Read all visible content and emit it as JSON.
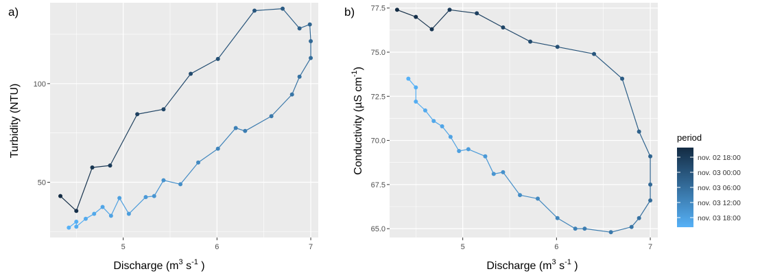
{
  "chart_data": [
    {
      "panel_label": "a)",
      "type": "line",
      "xlabel": "Discharge (m",
      "xlabel_sup": "3",
      "xlabel_mid": " s",
      "xlabel_sup2": "-1",
      "xlabel_end": " )",
      "ylabel": "Turbidity (NTU)",
      "xlim": [
        4.22,
        7.08
      ],
      "ylim": [
        22,
        141
      ],
      "xticks": [
        5,
        6,
        7
      ],
      "yticks": [
        50,
        100
      ],
      "grid": true,
      "points": [
        {
          "x": 4.33,
          "y": 43,
          "t": 0.0
        },
        {
          "x": 4.5,
          "y": 35.5,
          "t": 0.04
        },
        {
          "x": 4.67,
          "y": 57.5,
          "t": 0.08
        },
        {
          "x": 4.86,
          "y": 58.5,
          "t": 0.12
        },
        {
          "x": 5.15,
          "y": 84.5,
          "t": 0.16
        },
        {
          "x": 5.43,
          "y": 87,
          "t": 0.2
        },
        {
          "x": 5.72,
          "y": 105,
          "t": 0.24
        },
        {
          "x": 6.01,
          "y": 112.5,
          "t": 0.28
        },
        {
          "x": 6.4,
          "y": 137,
          "t": 0.32
        },
        {
          "x": 6.7,
          "y": 138,
          "t": 0.36
        },
        {
          "x": 6.88,
          "y": 128,
          "t": 0.4
        },
        {
          "x": 6.99,
          "y": 130,
          "t": 0.43
        },
        {
          "x": 7.0,
          "y": 121.5,
          "t": 0.46
        },
        {
          "x": 7.0,
          "y": 113,
          "t": 0.49
        },
        {
          "x": 6.88,
          "y": 103.5,
          "t": 0.52
        },
        {
          "x": 6.8,
          "y": 94.5,
          "t": 0.55
        },
        {
          "x": 6.58,
          "y": 83.5,
          "t": 0.58
        },
        {
          "x": 6.3,
          "y": 76,
          "t": 0.61
        },
        {
          "x": 6.2,
          "y": 77.5,
          "t": 0.64
        },
        {
          "x": 6.01,
          "y": 67,
          "t": 0.67
        },
        {
          "x": 5.8,
          "y": 60,
          "t": 0.7
        },
        {
          "x": 5.61,
          "y": 49,
          "t": 0.73
        },
        {
          "x": 5.43,
          "y": 51,
          "t": 0.76
        },
        {
          "x": 5.33,
          "y": 43,
          "t": 0.79
        },
        {
          "x": 5.24,
          "y": 42.5,
          "t": 0.82
        },
        {
          "x": 5.06,
          "y": 34,
          "t": 0.85
        },
        {
          "x": 4.96,
          "y": 42,
          "t": 0.87
        },
        {
          "x": 4.87,
          "y": 33,
          "t": 0.89
        },
        {
          "x": 4.78,
          "y": 37.5,
          "t": 0.91
        },
        {
          "x": 4.69,
          "y": 34,
          "t": 0.93
        },
        {
          "x": 4.6,
          "y": 31.5,
          "t": 0.95
        },
        {
          "x": 4.5,
          "y": 27.5,
          "t": 0.97
        },
        {
          "x": 4.5,
          "y": 30,
          "t": 0.985
        },
        {
          "x": 4.42,
          "y": 27,
          "t": 1.0
        }
      ]
    },
    {
      "panel_label": "b)",
      "type": "line",
      "xlabel": "Discharge (m",
      "xlabel_sup": "3",
      "xlabel_mid": " s",
      "xlabel_sup2": "-1",
      "xlabel_end": " )",
      "ylabel": "Conductivity (µS cm",
      "ylabel_sup": "-1",
      "ylabel_end": ")",
      "xlim": [
        4.22,
        7.08
      ],
      "ylim": [
        64.5,
        77.8
      ],
      "xticks": [
        5,
        6,
        7
      ],
      "yticks": [
        65.0,
        67.5,
        70.0,
        72.5,
        75.0,
        77.5
      ],
      "ytick_labels": [
        "65.0",
        "67.5",
        "70.0",
        "72.5",
        "75.0",
        "77.5"
      ],
      "grid": true,
      "points": [
        {
          "x": 4.3,
          "y": 77.4,
          "t": 0.0
        },
        {
          "x": 4.5,
          "y": 77.0,
          "t": 0.04
        },
        {
          "x": 4.67,
          "y": 76.3,
          "t": 0.08
        },
        {
          "x": 4.86,
          "y": 77.4,
          "t": 0.12
        },
        {
          "x": 5.15,
          "y": 77.2,
          "t": 0.16
        },
        {
          "x": 5.43,
          "y": 76.4,
          "t": 0.2
        },
        {
          "x": 5.72,
          "y": 75.6,
          "t": 0.24
        },
        {
          "x": 6.01,
          "y": 75.3,
          "t": 0.28
        },
        {
          "x": 6.4,
          "y": 74.9,
          "t": 0.32
        },
        {
          "x": 6.7,
          "y": 73.5,
          "t": 0.36
        },
        {
          "x": 6.88,
          "y": 70.5,
          "t": 0.4
        },
        {
          "x": 7.0,
          "y": 69.1,
          "t": 0.43
        },
        {
          "x": 7.0,
          "y": 67.5,
          "t": 0.46
        },
        {
          "x": 7.0,
          "y": 66.6,
          "t": 0.49
        },
        {
          "x": 6.88,
          "y": 65.6,
          "t": 0.52
        },
        {
          "x": 6.8,
          "y": 65.1,
          "t": 0.55
        },
        {
          "x": 6.58,
          "y": 64.8,
          "t": 0.58
        },
        {
          "x": 6.3,
          "y": 65.0,
          "t": 0.61
        },
        {
          "x": 6.2,
          "y": 65.0,
          "t": 0.64
        },
        {
          "x": 6.01,
          "y": 65.6,
          "t": 0.67
        },
        {
          "x": 5.8,
          "y": 66.7,
          "t": 0.7
        },
        {
          "x": 5.61,
          "y": 66.9,
          "t": 0.73
        },
        {
          "x": 5.43,
          "y": 68.2,
          "t": 0.76
        },
        {
          "x": 5.33,
          "y": 68.1,
          "t": 0.79
        },
        {
          "x": 5.24,
          "y": 69.1,
          "t": 0.82
        },
        {
          "x": 5.06,
          "y": 69.5,
          "t": 0.85
        },
        {
          "x": 4.96,
          "y": 69.4,
          "t": 0.87
        },
        {
          "x": 4.87,
          "y": 70.2,
          "t": 0.89
        },
        {
          "x": 4.78,
          "y": 70.8,
          "t": 0.91
        },
        {
          "x": 4.69,
          "y": 71.1,
          "t": 0.93
        },
        {
          "x": 4.6,
          "y": 71.7,
          "t": 0.95
        },
        {
          "x": 4.5,
          "y": 72.2,
          "t": 0.97
        },
        {
          "x": 4.5,
          "y": 73.0,
          "t": 0.985
        },
        {
          "x": 4.42,
          "y": 73.5,
          "t": 1.0
        }
      ]
    }
  ],
  "legend": {
    "title": "period",
    "labels": [
      "nov. 02 18:00",
      "nov. 03 00:00",
      "nov. 03 06:00",
      "nov. 03 12:00",
      "nov. 03 18:00"
    ],
    "color_start": "#132b43",
    "color_end": "#56b1f7"
  },
  "colors": {
    "panel_bg": "#ebebeb",
    "grid": "#ffffff",
    "tick_text": "#4d4d4d",
    "axis_title": "#000000"
  }
}
